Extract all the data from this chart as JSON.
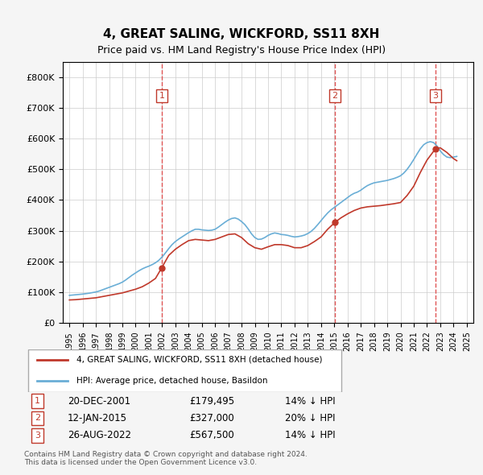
{
  "title": "4, GREAT SALING, WICKFORD, SS11 8XH",
  "subtitle": "Price paid vs. HM Land Registry's House Price Index (HPI)",
  "xlabel": "",
  "ylabel": "",
  "ylim": [
    0,
    850000
  ],
  "yticks": [
    0,
    100000,
    200000,
    300000,
    400000,
    500000,
    600000,
    700000,
    800000
  ],
  "ytick_labels": [
    "£0",
    "£100K",
    "£200K",
    "£300K",
    "£400K",
    "£500K",
    "£600K",
    "£700K",
    "£800K"
  ],
  "hpi_color": "#6aaed6",
  "price_color": "#c0392b",
  "sale_marker_color": "#c0392b",
  "vline_color": "#e05555",
  "background_color": "#f5f5f5",
  "plot_bg_color": "#ffffff",
  "grid_color": "#cccccc",
  "legend_label_property": "4, GREAT SALING, WICKFORD, SS11 8XH (detached house)",
  "legend_label_hpi": "HPI: Average price, detached house, Basildon",
  "sales": [
    {
      "num": 1,
      "date": "20-DEC-2001",
      "price": 179495,
      "pct": "14%",
      "dir": "↓"
    },
    {
      "num": 2,
      "date": "12-JAN-2015",
      "price": 327000,
      "pct": "20%",
      "dir": "↓"
    },
    {
      "num": 3,
      "date": "26-AUG-2022",
      "price": 567500,
      "pct": "14%",
      "dir": "↓"
    }
  ],
  "sale_years": [
    2001.97,
    2015.04,
    2022.65
  ],
  "sale_prices": [
    179495,
    327000,
    567500
  ],
  "footer": "Contains HM Land Registry data © Crown copyright and database right 2024.\nThis data is licensed under the Open Government Licence v3.0.",
  "hpi_data": {
    "years": [
      1995.0,
      1995.25,
      1995.5,
      1995.75,
      1996.0,
      1996.25,
      1996.5,
      1996.75,
      1997.0,
      1997.25,
      1997.5,
      1997.75,
      1998.0,
      1998.25,
      1998.5,
      1998.75,
      1999.0,
      1999.25,
      1999.5,
      1999.75,
      2000.0,
      2000.25,
      2000.5,
      2000.75,
      2001.0,
      2001.25,
      2001.5,
      2001.75,
      2002.0,
      2002.25,
      2002.5,
      2002.75,
      2003.0,
      2003.25,
      2003.5,
      2003.75,
      2004.0,
      2004.25,
      2004.5,
      2004.75,
      2005.0,
      2005.25,
      2005.5,
      2005.75,
      2006.0,
      2006.25,
      2006.5,
      2006.75,
      2007.0,
      2007.25,
      2007.5,
      2007.75,
      2008.0,
      2008.25,
      2008.5,
      2008.75,
      2009.0,
      2009.25,
      2009.5,
      2009.75,
      2010.0,
      2010.25,
      2010.5,
      2010.75,
      2011.0,
      2011.25,
      2011.5,
      2011.75,
      2012.0,
      2012.25,
      2012.5,
      2012.75,
      2013.0,
      2013.25,
      2013.5,
      2013.75,
      2014.0,
      2014.25,
      2014.5,
      2014.75,
      2015.0,
      2015.25,
      2015.5,
      2015.75,
      2016.0,
      2016.25,
      2016.5,
      2016.75,
      2017.0,
      2017.25,
      2017.5,
      2017.75,
      2018.0,
      2018.25,
      2018.5,
      2018.75,
      2019.0,
      2019.25,
      2019.5,
      2019.75,
      2020.0,
      2020.25,
      2020.5,
      2020.75,
      2021.0,
      2021.25,
      2021.5,
      2021.75,
      2022.0,
      2022.25,
      2022.5,
      2022.75,
      2023.0,
      2023.25,
      2023.5,
      2023.75,
      2024.0,
      2024.25
    ],
    "values": [
      90000,
      91000,
      92000,
      93000,
      94000,
      95500,
      97000,
      99000,
      101000,
      104000,
      108000,
      112000,
      116000,
      120000,
      124000,
      128000,
      133000,
      140000,
      148000,
      156000,
      163000,
      170000,
      176000,
      181000,
      185000,
      190000,
      196000,
      204000,
      215000,
      228000,
      242000,
      255000,
      265000,
      273000,
      280000,
      287000,
      294000,
      300000,
      305000,
      305000,
      303000,
      302000,
      301000,
      302000,
      305000,
      312000,
      320000,
      328000,
      335000,
      340000,
      342000,
      338000,
      330000,
      320000,
      306000,
      290000,
      278000,
      272000,
      273000,
      278000,
      285000,
      290000,
      293000,
      291000,
      288000,
      287000,
      285000,
      282000,
      280000,
      281000,
      283000,
      286000,
      291000,
      298000,
      308000,
      320000,
      333000,
      346000,
      358000,
      368000,
      376000,
      384000,
      392000,
      400000,
      408000,
      416000,
      422000,
      426000,
      432000,
      440000,
      447000,
      452000,
      456000,
      458000,
      460000,
      462000,
      464000,
      467000,
      470000,
      474000,
      479000,
      488000,
      500000,
      515000,
      532000,
      550000,
      567000,
      580000,
      587000,
      590000,
      587000,
      576000,
      560000,
      548000,
      540000,
      538000,
      540000,
      542000
    ]
  },
  "price_data": {
    "years": [
      1995.0,
      1995.5,
      1996.0,
      1996.5,
      1997.0,
      1997.5,
      1998.0,
      1998.5,
      1999.0,
      1999.5,
      2000.0,
      2000.5,
      2001.0,
      2001.5,
      2001.97,
      2002.5,
      2003.0,
      2003.5,
      2004.0,
      2004.5,
      2005.0,
      2005.5,
      2006.0,
      2006.5,
      2007.0,
      2007.5,
      2008.0,
      2008.5,
      2009.0,
      2009.5,
      2010.0,
      2010.5,
      2011.0,
      2011.5,
      2012.0,
      2012.5,
      2013.0,
      2013.5,
      2014.0,
      2014.5,
      2015.04,
      2015.5,
      2016.0,
      2016.5,
      2017.0,
      2017.5,
      2018.0,
      2018.5,
      2019.0,
      2019.5,
      2020.0,
      2020.5,
      2021.0,
      2021.5,
      2022.0,
      2022.65,
      2023.0,
      2023.5,
      2024.0,
      2024.25
    ],
    "values": [
      75000,
      76000,
      78000,
      80000,
      82000,
      86000,
      90000,
      94000,
      98000,
      104000,
      110000,
      118000,
      130000,
      145000,
      179495,
      220000,
      240000,
      255000,
      268000,
      272000,
      270000,
      268000,
      272000,
      280000,
      288000,
      290000,
      278000,
      258000,
      245000,
      240000,
      248000,
      255000,
      255000,
      252000,
      245000,
      245000,
      252000,
      265000,
      280000,
      305000,
      327000,
      342000,
      355000,
      366000,
      374000,
      378000,
      380000,
      382000,
      385000,
      388000,
      392000,
      415000,
      445000,
      490000,
      530000,
      567500,
      570000,
      555000,
      535000,
      528000
    ]
  }
}
